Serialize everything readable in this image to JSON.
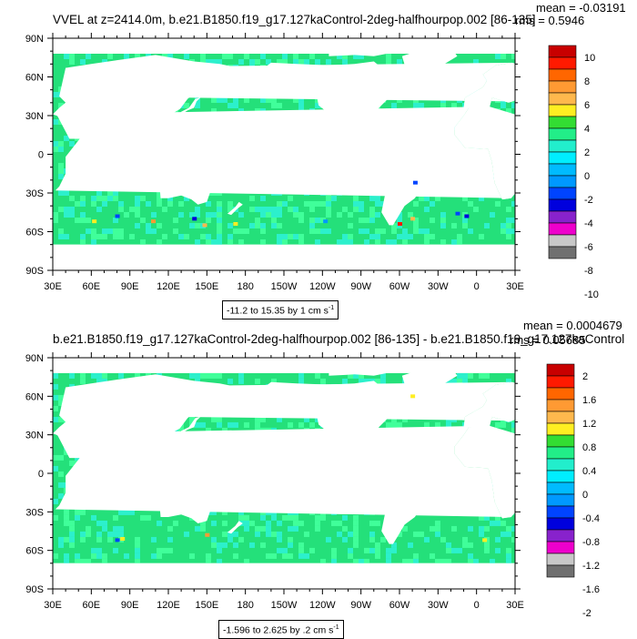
{
  "panels": [
    {
      "title": "VVEL at z=2414.0m, b.e21.B1850.f19_g17.127kaControl-2deg-halfhourpop.002 [86-135]",
      "mean": "mean = -0.03191",
      "rms": "rms = 0.5946",
      "range_text": "-11.2 to 15.35 by 1 cm s",
      "range_unit_exp": "-1",
      "colorbar_labels": [
        "10",
        "8",
        "6",
        "4",
        "2",
        "0",
        "-2",
        "-4",
        "-6",
        "-8",
        "-10"
      ]
    },
    {
      "title": "b.e21.B1850.f19_g17.127kaControl-2deg-halfhourpop.002 [86-135] - b.e21.B1850.f19_g17.127kaControl",
      "mean": "mean = 0.0004679",
      "rms": "rms = 0.05685",
      "range_text": "-1.596 to 2.625 by .2 cm s",
      "range_unit_exp": "-1",
      "colorbar_labels": [
        "2",
        "1.6",
        "1.2",
        "0.8",
        "0.4",
        "0",
        "-0.4",
        "-0.8",
        "-1.2",
        "-1.6",
        "-2"
      ]
    }
  ],
  "chart_data": [
    {
      "type": "heatmap",
      "title": "VVEL at z=2414.0m, b.e21.B1850.f19_g17.127kaControl-2deg-halfhourpop.002 [86-135]",
      "x_ticks": [
        "30E",
        "60E",
        "90E",
        "120E",
        "150E",
        "180",
        "150W",
        "120W",
        "90W",
        "60W",
        "30W",
        "0",
        "30E"
      ],
      "y_ticks": [
        "90N",
        "60N",
        "30N",
        "0",
        "30S",
        "60S",
        "90S"
      ],
      "xlim": [
        30,
        390
      ],
      "ylim": [
        -90,
        90
      ],
      "colorbar": {
        "min": -10,
        "max": 10,
        "step": 2,
        "unit": "cm s-1"
      },
      "stats": {
        "mean": -0.03191,
        "rms": 0.5946,
        "min": -11.2,
        "max": 15.35,
        "interval": 1
      }
    },
    {
      "type": "heatmap",
      "title": "b.e21.B1850.f19_g17.127kaControl-2deg-halfhourpop.002 [86-135] - b.e21.B1850.f19_g17.127kaControl",
      "x_ticks": [
        "30E",
        "60E",
        "90E",
        "120E",
        "150E",
        "180",
        "150W",
        "120W",
        "90W",
        "60W",
        "30W",
        "0",
        "30E"
      ],
      "y_ticks": [
        "90N",
        "60N",
        "30N",
        "0",
        "30S",
        "60S",
        "90S"
      ],
      "xlim": [
        30,
        390
      ],
      "ylim": [
        -90,
        90
      ],
      "colorbar": {
        "min": -2,
        "max": 2,
        "step": 0.4,
        "unit": "cm s-1"
      },
      "stats": {
        "mean": 0.0004679,
        "rms": 0.05685,
        "min": -1.596,
        "max": 2.625,
        "interval": 0.2
      }
    }
  ],
  "axis_ticks": {
    "x": [
      "30E",
      "60E",
      "90E",
      "120E",
      "150E",
      "180",
      "150W",
      "120W",
      "90W",
      "60W",
      "30W",
      "0",
      "30E"
    ],
    "y": [
      "90N",
      "60N",
      "30N",
      "0",
      "30S",
      "60S",
      "90S"
    ]
  },
  "colors": {
    "land": "#ffffff",
    "ocean_base": "#24e07a",
    "ocean_cyan": "#2cf0cc",
    "ocean_light": "#40ff9a",
    "palette_top_to_bottom": [
      "#c80000",
      "#ff1a00",
      "#ff6600",
      "#ff9a33",
      "#ffb84d",
      "#ffee22",
      "#33dd33",
      "#22ee88",
      "#22eecc",
      "#00eeff",
      "#00bbff",
      "#0099ff",
      "#0044ff",
      "#0000dd",
      "#8822cc",
      "#ee00cc",
      "#c8c8c8",
      "#707070"
    ]
  }
}
